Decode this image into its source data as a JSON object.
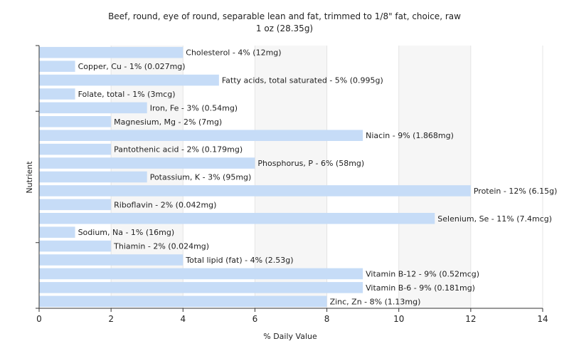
{
  "chart_data": {
    "type": "bar",
    "orientation": "horizontal",
    "title": "Beef, round, eye of round, separable lean and fat, trimmed to 1/8\" fat, choice, raw",
    "subtitle": "1 oz (28.35g)",
    "xlabel": "% Daily Value",
    "ylabel": "Nutrient",
    "xlim": [
      0,
      14
    ],
    "xticks": [
      0,
      2,
      4,
      6,
      8,
      10,
      12,
      14
    ],
    "grid": true,
    "legend": "none",
    "bar_color": "#c6dcf7",
    "categories": [
      "Cholesterol",
      "Copper, Cu",
      "Fatty acids, total saturated",
      "Folate, total",
      "Iron, Fe",
      "Magnesium, Mg",
      "Niacin",
      "Pantothenic acid",
      "Phosphorus, P",
      "Potassium, K",
      "Protein",
      "Riboflavin",
      "Selenium, Se",
      "Sodium, Na",
      "Thiamin",
      "Total lipid (fat)",
      "Vitamin B-12",
      "Vitamin B-6",
      "Zinc, Zn"
    ],
    "values": [
      4,
      1,
      5,
      1,
      3,
      2,
      9,
      2,
      6,
      3,
      12,
      2,
      11,
      1,
      2,
      4,
      9,
      9,
      8
    ],
    "labels": [
      "Cholesterol - 4% (12mg)",
      "Copper, Cu - 1% (0.027mg)",
      "Fatty acids, total saturated - 5% (0.995g)",
      "Folate, total - 1% (3mcg)",
      "Iron, Fe - 3% (0.54mg)",
      "Magnesium, Mg - 2% (7mg)",
      "Niacin - 9% (1.868mg)",
      "Pantothenic acid - 2% (0.179mg)",
      "Phosphorus, P - 6% (58mg)",
      "Potassium, K - 3% (95mg)",
      "Protein - 12% (6.15g)",
      "Riboflavin - 2% (0.042mg)",
      "Selenium, Se - 11% (7.4mcg)",
      "Sodium, Na - 1% (16mg)",
      "Thiamin - 2% (0.024mg)",
      "Total lipid (fat) - 4% (2.53g)",
      "Vitamin B-12 - 9% (0.52mcg)",
      "Vitamin B-6 - 9% (0.181mg)",
      "Zinc, Zn - 8% (1.13mg)"
    ]
  }
}
